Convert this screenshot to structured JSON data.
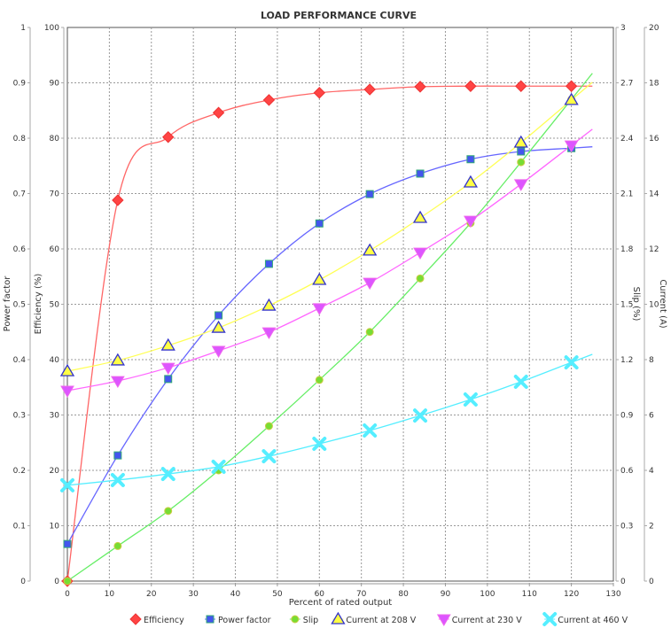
{
  "chart_data": {
    "type": "line",
    "title": "LOAD PERFORMANCE CURVE",
    "xlabel": "Percent of rated output",
    "xlim": [
      0,
      130
    ],
    "xticks": [
      0,
      10,
      20,
      30,
      40,
      50,
      60,
      70,
      80,
      90,
      100,
      110,
      120,
      130
    ],
    "grid": true,
    "legend_position": "bottom",
    "axes": {
      "pf": {
        "label": "Power factor",
        "lim": [
          0,
          1
        ],
        "ticks": [
          "0",
          "0.1",
          "0.2",
          "0.3",
          "0.4",
          "0.5",
          "0.6",
          "0.7",
          "0.8",
          "0.9",
          "1"
        ],
        "side": "left-outer"
      },
      "eff": {
        "label": "Efficiency (%)",
        "lim": [
          0,
          100
        ],
        "ticks": [
          "0",
          "10",
          "20",
          "30",
          "40",
          "50",
          "60",
          "70",
          "80",
          "90",
          "100"
        ],
        "side": "left-inner"
      },
      "slip": {
        "label": "Slip (%)",
        "lim": [
          0,
          3
        ],
        "ticks": [
          "0",
          "0.3",
          "0.6",
          "0.9",
          "1.2",
          "1.5",
          "1.8",
          "2.1",
          "2.4",
          "2.7",
          "3"
        ],
        "side": "right-inner"
      },
      "cur": {
        "label": "Current (A)",
        "lim": [
          0,
          20
        ],
        "ticks": [
          "0",
          "2",
          "4",
          "6",
          "8",
          "10",
          "12",
          "14",
          "16",
          "18",
          "20"
        ],
        "side": "right-outer"
      }
    },
    "x": [
      0,
      12,
      24,
      36,
      48,
      60,
      72,
      84,
      96,
      108,
      120
    ],
    "series": [
      {
        "name": "Efficiency",
        "axis": "eff",
        "marker": "diamond",
        "color": "#ff4444",
        "line_color": "#ff6666",
        "values": [
          0,
          68.8,
          80.2,
          84.6,
          86.9,
          88.2,
          88.8,
          89.3,
          89.4,
          89.4,
          89.4
        ]
      },
      {
        "name": "Power factor",
        "axis": "pf",
        "marker": "square",
        "color": "#4455ee",
        "line_color": "#6666ff",
        "values": [
          0.067,
          0.227,
          0.365,
          0.48,
          0.573,
          0.646,
          0.699,
          0.736,
          0.762,
          0.776,
          0.782
        ]
      },
      {
        "name": "Slip",
        "axis": "slip",
        "marker": "circle",
        "color": "#77dd33",
        "line_color": "#66ee66",
        "values": [
          0,
          0.19,
          0.38,
          0.6,
          0.84,
          1.09,
          1.35,
          1.64,
          1.94,
          2.27,
          2.61
        ]
      },
      {
        "name": "Current at 208 V",
        "axis": "cur",
        "marker": "triangle-up",
        "color": "#ffff44",
        "line_color": "#ffff55",
        "values": [
          7.58,
          7.97,
          8.51,
          9.15,
          9.95,
          10.88,
          11.94,
          13.12,
          14.4,
          15.84,
          17.38
        ]
      },
      {
        "name": "Current at 230 V",
        "axis": "cur",
        "marker": "triangle-down",
        "color": "#dd55ff",
        "line_color": "#ff66ff",
        "values": [
          6.88,
          7.23,
          7.71,
          8.32,
          8.99,
          9.86,
          10.78,
          11.87,
          13.02,
          14.34,
          15.74
        ]
      },
      {
        "name": "Current at 460 V",
        "axis": "cur",
        "marker": "x",
        "color": "#55eeff",
        "line_color": "#55eeff",
        "values": [
          3.46,
          3.65,
          3.87,
          4.13,
          4.51,
          4.96,
          5.44,
          5.98,
          6.56,
          7.2,
          7.9
        ]
      }
    ]
  }
}
